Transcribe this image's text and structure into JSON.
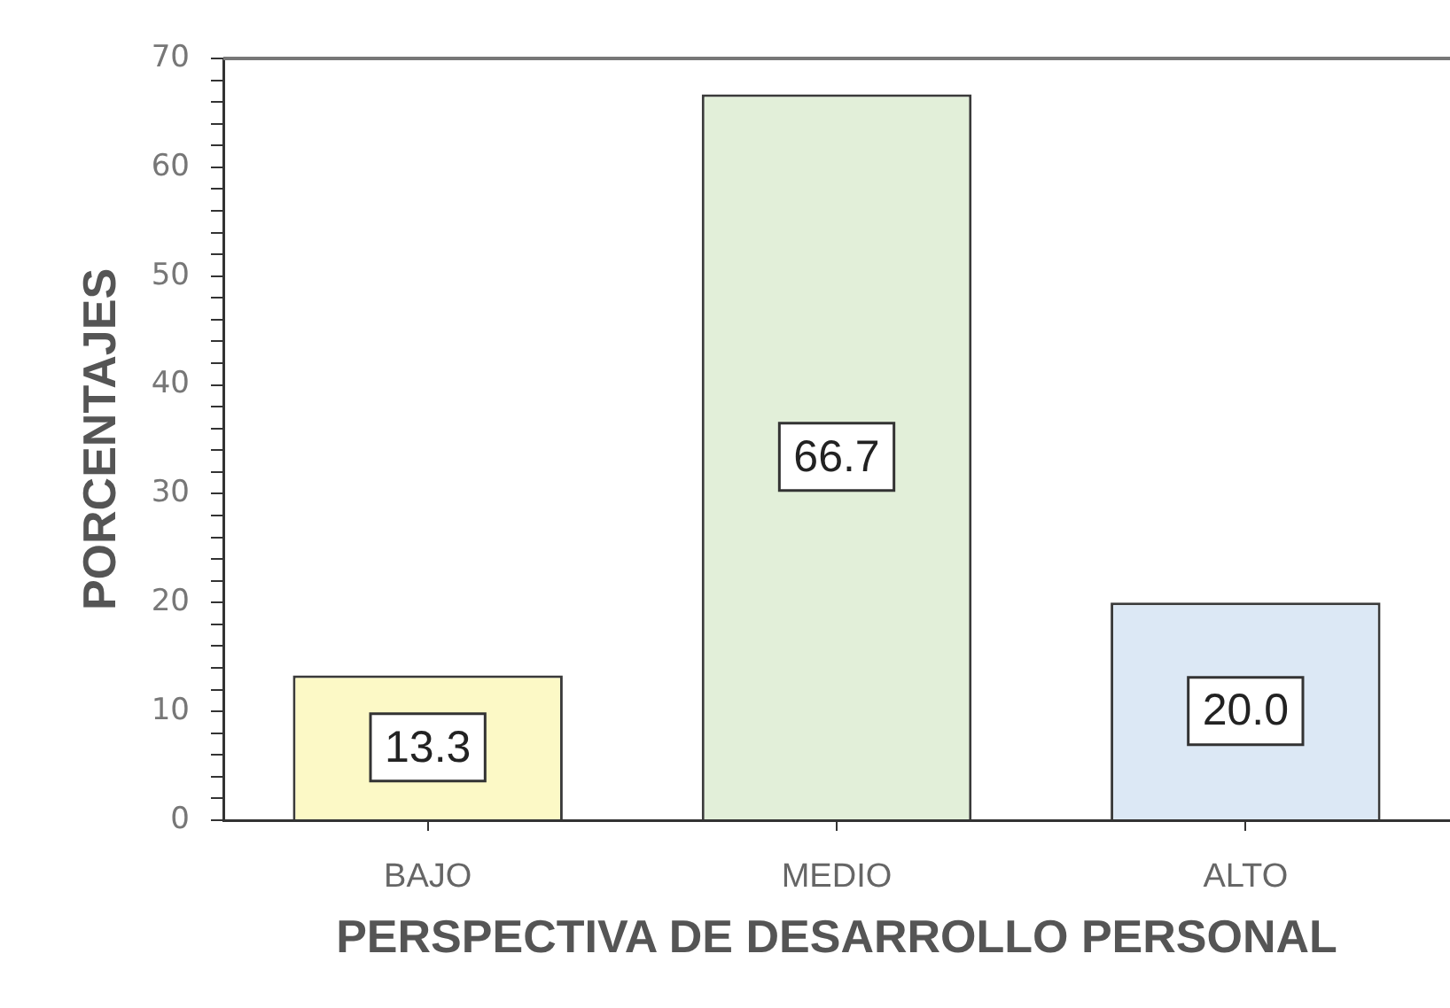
{
  "chart_data": {
    "type": "bar",
    "xlabel": "PERSPECTIVA DE DESARROLLO PERSONAL",
    "ylabel": "PORCENTAJES",
    "categories": [
      "BAJO",
      "MEDIO",
      "ALTO"
    ],
    "values": [
      13.3,
      66.7,
      20.0
    ],
    "value_labels": [
      "13.3",
      "66.7",
      "20.0"
    ],
    "colors": [
      "#fcf9c6",
      "#e2efd9",
      "#dce8f5"
    ],
    "ylim": [
      0,
      70
    ],
    "yticks": [
      0,
      {
        "value": 2,
        "label": null
      },
      {
        "value": 4,
        "label": null
      },
      {
        "value": 6,
        "label": null
      },
      {
        "value": 8,
        "label": null
      },
      10,
      {
        "value": 12,
        "label": null
      },
      {
        "value": 14,
        "label": null
      },
      {
        "value": 16,
        "label": null
      },
      {
        "value": 18,
        "label": null
      },
      20,
      {
        "value": 22,
        "label": null
      },
      {
        "value": 24,
        "label": null
      },
      {
        "value": 26,
        "label": null
      },
      {
        "value": 28,
        "label": null
      },
      30,
      {
        "value": 32,
        "label": null
      },
      {
        "value": 34,
        "label": null
      },
      {
        "value": 36,
        "label": null
      },
      {
        "value": 38,
        "label": null
      },
      40,
      {
        "value": 42,
        "label": null
      },
      {
        "value": 44,
        "label": null
      },
      {
        "value": 46,
        "label": null
      },
      {
        "value": 48,
        "label": null
      },
      50,
      {
        "value": 52,
        "label": null
      },
      {
        "value": 54,
        "label": null
      },
      {
        "value": 56,
        "label": null
      },
      {
        "value": 58,
        "label": null
      },
      60,
      {
        "value": 62,
        "label": null
      },
      {
        "value": 64,
        "label": null
      },
      {
        "value": 66,
        "label": null
      },
      {
        "value": 68,
        "label": null
      },
      70
    ],
    "legend": false,
    "grid": false
  }
}
